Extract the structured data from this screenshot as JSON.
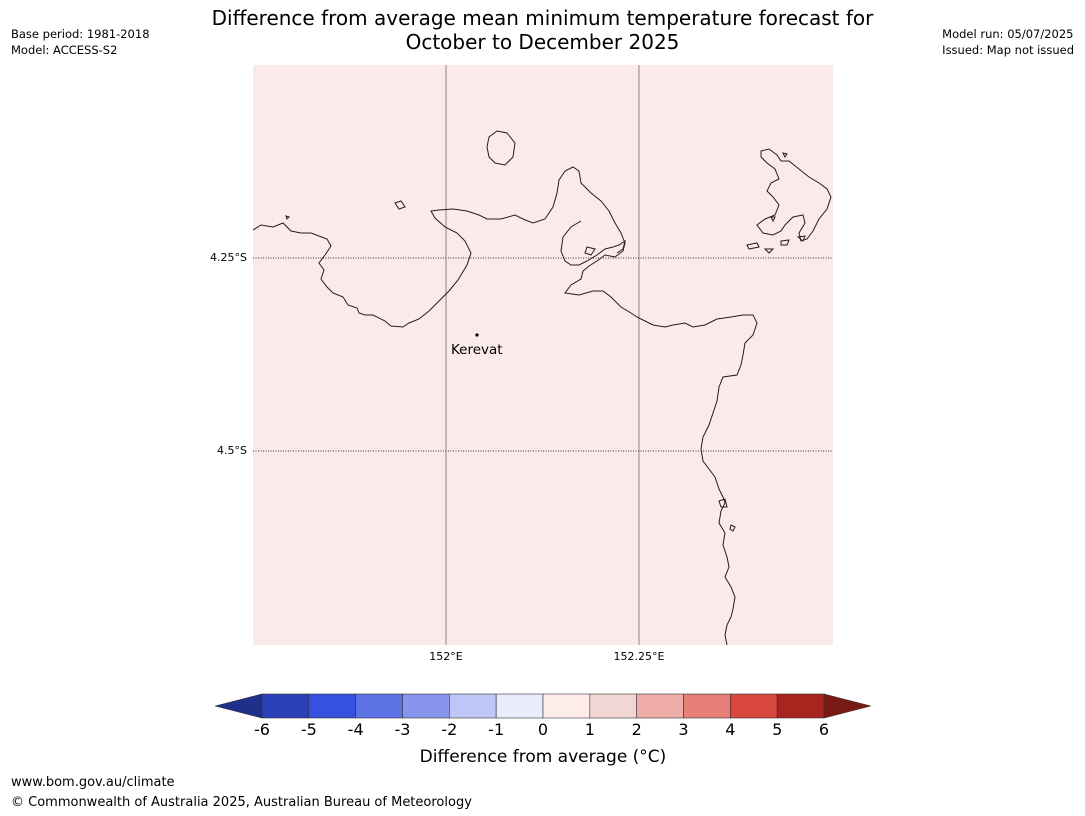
{
  "header": {
    "base_period": "Base period: 1981-2018",
    "model": "Model: ACCESS-S2",
    "title_line1": "Difference from average mean minimum temperature forecast for",
    "title_line2": "October to December 2025",
    "model_run": "Model run: 05/07/2025",
    "issued": "Issued: Map not issued"
  },
  "map": {
    "fill_color": "#fbeaea",
    "coast_color": "#2a1a1a",
    "grid": {
      "lat_labels": [
        "4.25°S",
        "4.5°S"
      ],
      "lon_labels": [
        "152°E",
        "152.25°E"
      ]
    },
    "place": {
      "name": "Kerevat"
    }
  },
  "colorbar": {
    "ticks": [
      "-6",
      "-5",
      "-4",
      "-3",
      "-2",
      "-1",
      "0",
      "1",
      "2",
      "3",
      "4",
      "5",
      "6"
    ],
    "colors": [
      "#1f2f8a",
      "#2a3fb8",
      "#3651dd",
      "#5c71e3",
      "#8796ec",
      "#bec6f5",
      "#e9ecfd",
      "#fdecea",
      "#f2d6d3",
      "#eeada8",
      "#e57f78",
      "#d9463c",
      "#a8251f",
      "#7a1a17"
    ],
    "label": "Difference from average (°C)"
  },
  "footer": {
    "url": "www.bom.gov.au/climate",
    "copyright": "© Commonwealth of Australia 2025, Australian Bureau of Meteorology"
  }
}
